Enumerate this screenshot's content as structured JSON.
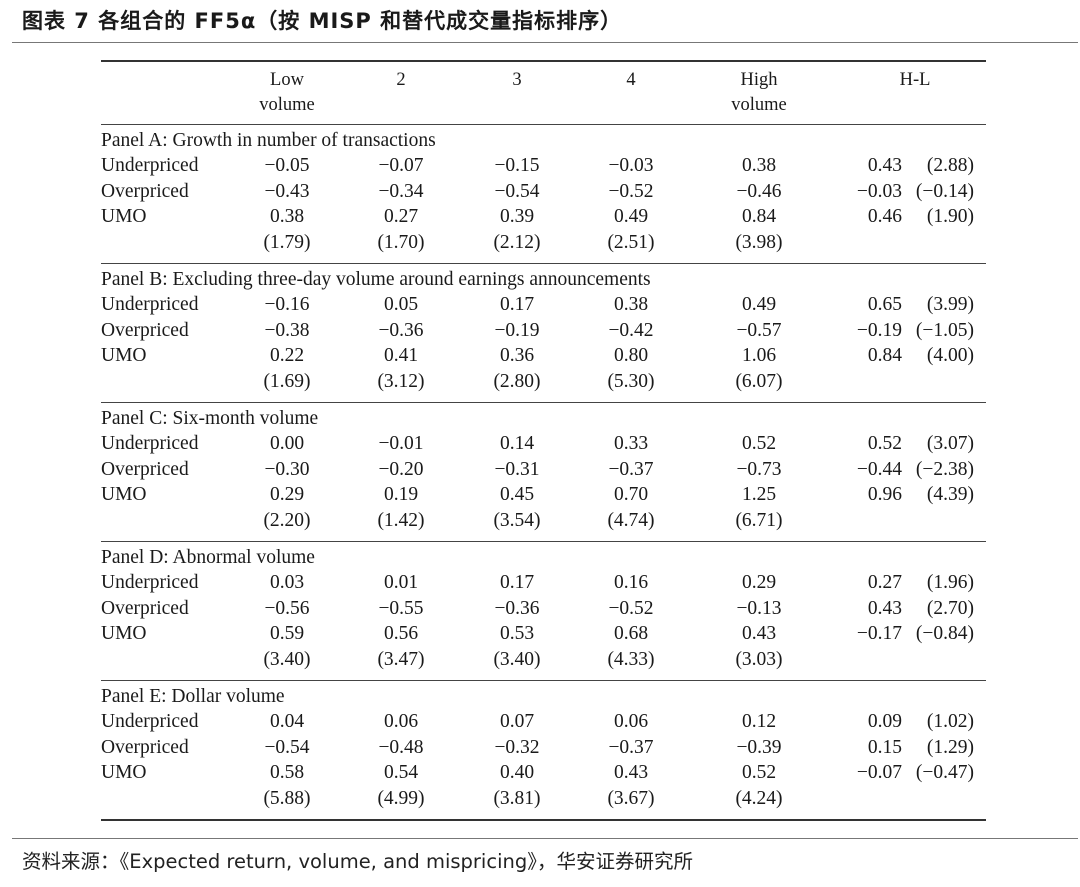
{
  "figure_title": "图表 7 各组合的 FF5α（按 MISP 和替代成交量指标排序）",
  "columns": [
    "Low\nvolume",
    "2",
    "3",
    "4",
    "High\nvolume",
    "H-L"
  ],
  "panels": [
    {
      "title": "Panel A: Growth in number of transactions",
      "rows": [
        {
          "label": "Underpriced",
          "values": [
            "−0.05",
            "−0.07",
            "−0.15",
            "−0.03",
            "0.38"
          ],
          "hl": "0.43",
          "hl_t": "(2.88)"
        },
        {
          "label": "Overpriced",
          "values": [
            "−0.43",
            "−0.34",
            "−0.54",
            "−0.52",
            "−0.46"
          ],
          "hl": "−0.03",
          "hl_t": "(−0.14)"
        },
        {
          "label": "UMO",
          "values": [
            "0.38",
            "0.27",
            "0.39",
            "0.49",
            "0.84"
          ],
          "hl": "0.46",
          "hl_t": "(1.90)"
        },
        {
          "label": "",
          "values": [
            "(1.79)",
            "(1.70)",
            "(2.12)",
            "(2.51)",
            "(3.98)"
          ],
          "hl": "",
          "hl_t": ""
        }
      ]
    },
    {
      "title": "Panel B: Excluding three-day volume around earnings announcements",
      "rows": [
        {
          "label": "Underpriced",
          "values": [
            "−0.16",
            "0.05",
            "0.17",
            "0.38",
            "0.49"
          ],
          "hl": "0.65",
          "hl_t": "(3.99)"
        },
        {
          "label": "Overpriced",
          "values": [
            "−0.38",
            "−0.36",
            "−0.19",
            "−0.42",
            "−0.57"
          ],
          "hl": "−0.19",
          "hl_t": "(−1.05)"
        },
        {
          "label": "UMO",
          "values": [
            "0.22",
            "0.41",
            "0.36",
            "0.80",
            "1.06"
          ],
          "hl": "0.84",
          "hl_t": "(4.00)"
        },
        {
          "label": "",
          "values": [
            "(1.69)",
            "(3.12)",
            "(2.80)",
            "(5.30)",
            "(6.07)"
          ],
          "hl": "",
          "hl_t": ""
        }
      ]
    },
    {
      "title": "Panel C: Six-month volume",
      "rows": [
        {
          "label": "Underpriced",
          "values": [
            "0.00",
            "−0.01",
            "0.14",
            "0.33",
            "0.52"
          ],
          "hl": "0.52",
          "hl_t": "(3.07)"
        },
        {
          "label": "Overpriced",
          "values": [
            "−0.30",
            "−0.20",
            "−0.31",
            "−0.37",
            "−0.73"
          ],
          "hl": "−0.44",
          "hl_t": "(−2.38)"
        },
        {
          "label": "UMO",
          "values": [
            "0.29",
            "0.19",
            "0.45",
            "0.70",
            "1.25"
          ],
          "hl": "0.96",
          "hl_t": "(4.39)"
        },
        {
          "label": "",
          "values": [
            "(2.20)",
            "(1.42)",
            "(3.54)",
            "(4.74)",
            "(6.71)"
          ],
          "hl": "",
          "hl_t": ""
        }
      ]
    },
    {
      "title": "Panel D: Abnormal volume",
      "rows": [
        {
          "label": "Underpriced",
          "values": [
            "0.03",
            "0.01",
            "0.17",
            "0.16",
            "0.29"
          ],
          "hl": "0.27",
          "hl_t": "(1.96)"
        },
        {
          "label": "Overpriced",
          "values": [
            "−0.56",
            "−0.55",
            "−0.36",
            "−0.52",
            "−0.13"
          ],
          "hl": "0.43",
          "hl_t": "(2.70)"
        },
        {
          "label": "UMO",
          "values": [
            "0.59",
            "0.56",
            "0.53",
            "0.68",
            "0.43"
          ],
          "hl": "−0.17",
          "hl_t": "(−0.84)"
        },
        {
          "label": "",
          "values": [
            "(3.40)",
            "(3.47)",
            "(3.40)",
            "(4.33)",
            "(3.03)"
          ],
          "hl": "",
          "hl_t": ""
        }
      ]
    },
    {
      "title": "Panel E: Dollar volume",
      "rows": [
        {
          "label": "Underpriced",
          "values": [
            "0.04",
            "0.06",
            "0.07",
            "0.06",
            "0.12"
          ],
          "hl": "0.09",
          "hl_t": "(1.02)"
        },
        {
          "label": "Overpriced",
          "values": [
            "−0.54",
            "−0.48",
            "−0.32",
            "−0.37",
            "−0.39"
          ],
          "hl": "0.15",
          "hl_t": "(1.29)"
        },
        {
          "label": "UMO",
          "values": [
            "0.58",
            "0.54",
            "0.40",
            "0.43",
            "0.52"
          ],
          "hl": "−0.07",
          "hl_t": "(−0.47)"
        },
        {
          "label": "",
          "values": [
            "(5.88)",
            "(4.99)",
            "(3.81)",
            "(3.67)",
            "(4.24)"
          ],
          "hl": "",
          "hl_t": ""
        }
      ]
    }
  ],
  "source": "资料来源：《Expected return, volume, and mispricing》，华安证券研究所"
}
